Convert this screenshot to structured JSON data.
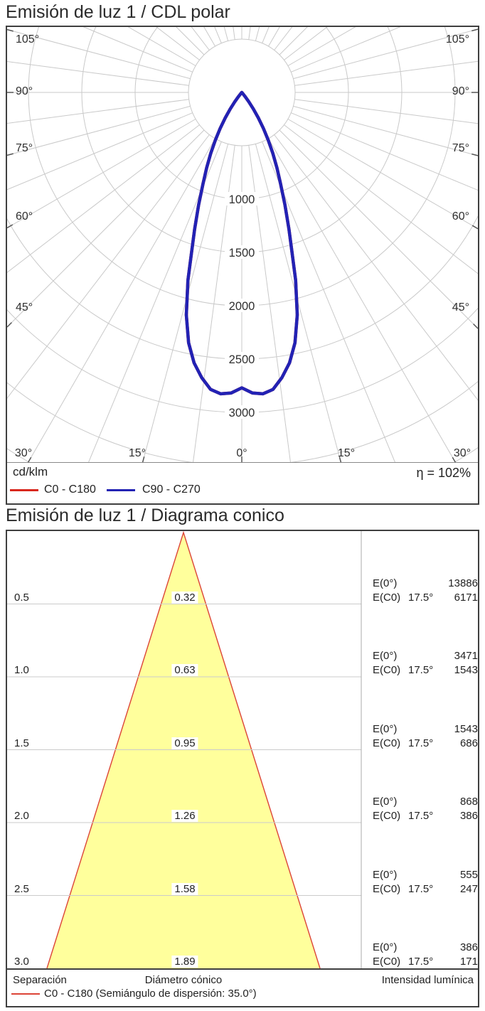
{
  "polar": {
    "title": "Emisión de luz 1 / CDL polar",
    "unit_label": "cd/klm",
    "efficiency": "η = 102%",
    "legend": [
      {
        "name": "C0 - C180",
        "color": "#d8271d"
      },
      {
        "name": "C90 - C270",
        "color": "#2222b4"
      }
    ]
  },
  "cone": {
    "title": "Emisión de luz 1 / Diagrama conico",
    "footer": {
      "separation": "Separación",
      "diameter": "Diámetro cónico",
      "intensity": "Intensidad lumínica"
    },
    "legend_label": "C0 - C180 (Semiángulo de dispersión: 35.0°)",
    "outline_color": "#dc4437",
    "fill_color": "#ffff9c"
  },
  "chart_data": [
    {
      "type": "polar",
      "title": "Emisión de luz 1 / CDL polar",
      "unit": "cd/klm",
      "efficiency_percent": 102,
      "angle_labels_deg": [
        0,
        15,
        30,
        45,
        60,
        75,
        90,
        105
      ],
      "angle_grid_step_deg": 7.5,
      "radial_ticks": [
        1000,
        1500,
        2000,
        2500,
        3000
      ],
      "radial_grid_step": 500,
      "max_intensity_cd_klm": 2833,
      "series": [
        {
          "name": "C0 - C180",
          "color": "#d8271d",
          "points_deg_cdklm": [
            [
              0,
              2770
            ],
            [
              2,
              2820
            ],
            [
              4,
              2833
            ],
            [
              6,
              2800
            ],
            [
              8,
              2700
            ],
            [
              10,
              2575
            ],
            [
              12,
              2400
            ],
            [
              14,
              2150
            ],
            [
              16,
              1830
            ],
            [
              17.5,
              1560
            ],
            [
              19,
              1360
            ],
            [
              21,
              1130
            ],
            [
              23,
              930
            ],
            [
              25,
              780
            ],
            [
              27,
              640
            ],
            [
              29,
              510
            ],
            [
              31,
              395
            ],
            [
              33,
              285
            ],
            [
              35,
              190
            ],
            [
              37,
              110
            ],
            [
              39,
              48
            ],
            [
              41,
              12
            ],
            [
              43,
              0
            ]
          ]
        },
        {
          "name": "C90 - C270",
          "color": "#2222b4",
          "points_deg_cdklm": [
            [
              0,
              2770
            ],
            [
              2,
              2820
            ],
            [
              4,
              2833
            ],
            [
              6,
              2800
            ],
            [
              8,
              2700
            ],
            [
              10,
              2575
            ],
            [
              12,
              2400
            ],
            [
              14,
              2150
            ],
            [
              16,
              1830
            ],
            [
              17.5,
              1560
            ],
            [
              19,
              1360
            ],
            [
              21,
              1130
            ],
            [
              23,
              930
            ],
            [
              25,
              780
            ],
            [
              27,
              640
            ],
            [
              29,
              510
            ],
            [
              31,
              395
            ],
            [
              33,
              285
            ],
            [
              35,
              190
            ],
            [
              37,
              110
            ],
            [
              39,
              48
            ],
            [
              41,
              12
            ],
            [
              43,
              0
            ]
          ]
        }
      ]
    },
    {
      "type": "cone",
      "title": "Emisión de luz 1 / Diagrama conico",
      "beam_half_angle_deg": 17.5,
      "e0_label": "E(0°)",
      "ec0_label": "E(C0)",
      "angle_label": "17.5°",
      "rows": [
        {
          "separation_m": "0.5",
          "diameter_m": "0.32",
          "e0_lx": "13886",
          "ec0_lx": "6171"
        },
        {
          "separation_m": "1.0",
          "diameter_m": "0.63",
          "e0_lx": "3471",
          "ec0_lx": "1543"
        },
        {
          "separation_m": "1.5",
          "diameter_m": "0.95",
          "e0_lx": "1543",
          "ec0_lx": "686"
        },
        {
          "separation_m": "2.0",
          "diameter_m": "1.26",
          "e0_lx": "868",
          "ec0_lx": "386"
        },
        {
          "separation_m": "2.5",
          "diameter_m": "1.58",
          "e0_lx": "555",
          "ec0_lx": "247"
        },
        {
          "separation_m": "3.0",
          "diameter_m": "1.89",
          "e0_lx": "386",
          "ec0_lx": "171"
        }
      ]
    }
  ]
}
